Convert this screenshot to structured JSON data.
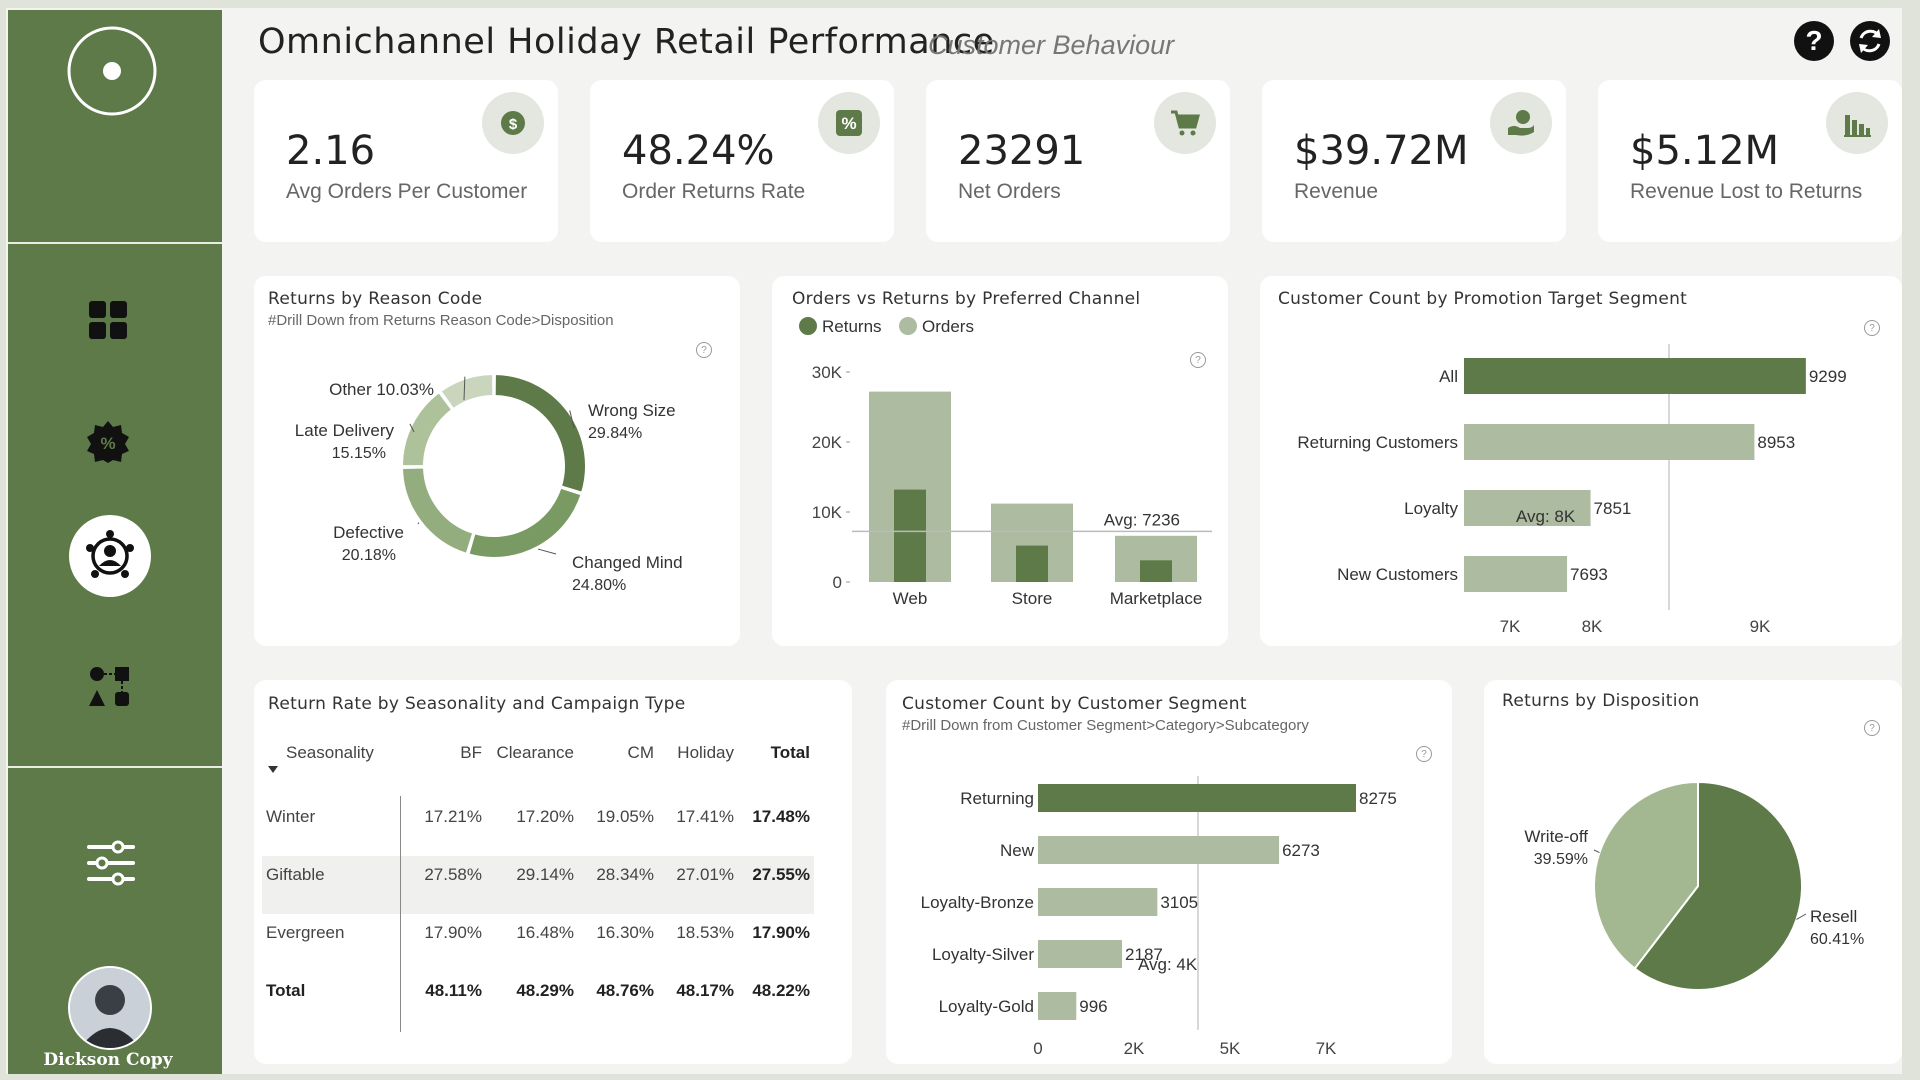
{
  "header": {
    "title": "Omnichannel Holiday Retail Performance",
    "subtitle": "Customer Behaviour"
  },
  "user": {
    "name": "Dickson Copy"
  },
  "kpis": [
    {
      "value": "2.16",
      "label": "Avg Orders Per Customer",
      "icon": "coin-icon"
    },
    {
      "value": "48.24%",
      "label": "Order Returns Rate",
      "icon": "percent-icon"
    },
    {
      "value": "23291",
      "label": "Net Orders",
      "icon": "cart-icon"
    },
    {
      "value": "$39.72M",
      "label": "Revenue",
      "icon": "money-hand-icon"
    },
    {
      "value": "$5.12M",
      "label": "Revenue Lost to Returns",
      "icon": "bar-decline-icon"
    }
  ],
  "colors": {
    "dark": "#5d7a48",
    "light": "#adbba0",
    "mid": "#93ad7f"
  },
  "chart_data": [
    {
      "type": "pie",
      "title": "Returns by Reason Code",
      "subtitle": "#Drill Down from Returns Reason Code>Disposition",
      "categories": [
        "Wrong Size",
        "Changed Mind",
        "Defective",
        "Late Delivery",
        "Other"
      ],
      "values": [
        29.84,
        24.8,
        20.18,
        15.15,
        10.03
      ],
      "labels": [
        "Wrong Size",
        "Changed Mind",
        "Defective",
        "Late Delivery",
        "Other 10.03%"
      ],
      "pcts": [
        "29.84%",
        "24.80%",
        "20.18%",
        "15.15%",
        ""
      ],
      "colors": [
        "#5d7a48",
        "#7a9a63",
        "#93ad7f",
        "#adc29a",
        "#c9d5bd"
      ]
    },
    {
      "type": "bar",
      "title": "Orders vs Returns by Preferred Channel",
      "categories": [
        "Web",
        "Store",
        "Marketplace"
      ],
      "series": [
        {
          "name": "Returns",
          "values": [
            13200,
            5200,
            3100
          ]
        },
        {
          "name": "Orders",
          "values": [
            27200,
            11200,
            6600
          ]
        }
      ],
      "ylim": [
        0,
        30000
      ],
      "yticks": [
        "0",
        "10K",
        "20K",
        "30K"
      ],
      "avg_label": "Avg: 7236",
      "avg_value": 7236
    },
    {
      "type": "bar",
      "title": "Customer Count by Promotion Target Segment",
      "categories": [
        "All",
        "Returning Customers",
        "Loyalty",
        "New Customers"
      ],
      "values": [
        9299,
        8953,
        7851,
        7693
      ],
      "value_labels": [
        "9299",
        "8953",
        "7851",
        "7693"
      ],
      "xlim": [
        7000,
        9300
      ],
      "xticks": [
        "7K",
        "8K",
        "9K"
      ],
      "avg_label": "Avg: 8K"
    },
    {
      "type": "table",
      "title": "Return Rate by Seasonality and Campaign Type",
      "columns": [
        "Seasonality",
        "BF",
        "Clearance",
        "CM",
        "Holiday",
        "Total"
      ],
      "rows": [
        [
          "Winter",
          "17.21%",
          "17.20%",
          "19.05%",
          "17.41%",
          "17.48%"
        ],
        [
          "Giftable",
          "27.58%",
          "29.14%",
          "28.34%",
          "27.01%",
          "27.55%"
        ],
        [
          "Evergreen",
          "17.90%",
          "16.48%",
          "16.30%",
          "18.53%",
          "17.90%"
        ],
        [
          "Total",
          "48.11%",
          "48.29%",
          "48.76%",
          "48.17%",
          "48.22%"
        ]
      ]
    },
    {
      "type": "bar",
      "title": "Customer Count by Customer Segment",
      "subtitle": "#Drill Down from Customer Segment>Category>Subcategory",
      "categories": [
        "Returning",
        "New",
        "Loyalty-Bronze",
        "Loyalty-Silver",
        "Loyalty-Gold"
      ],
      "values": [
        8275,
        6273,
        3105,
        2187,
        996
      ],
      "value_labels": [
        "8275",
        "6273",
        "3105",
        "2187",
        "996"
      ],
      "xlim": [
        0,
        8275
      ],
      "xticks": [
        "0",
        "2K",
        "5K",
        "7K"
      ],
      "avg_label": "Avg: 4K"
    },
    {
      "type": "pie",
      "title": "Returns by Disposition",
      "categories": [
        "Resell",
        "Write-off"
      ],
      "values": [
        60.41,
        39.59
      ],
      "labels": [
        "Resell",
        "Write-off"
      ],
      "pcts": [
        "60.41%",
        "39.59%"
      ],
      "colors": [
        "#5d7a48",
        "#a3b791"
      ]
    }
  ]
}
